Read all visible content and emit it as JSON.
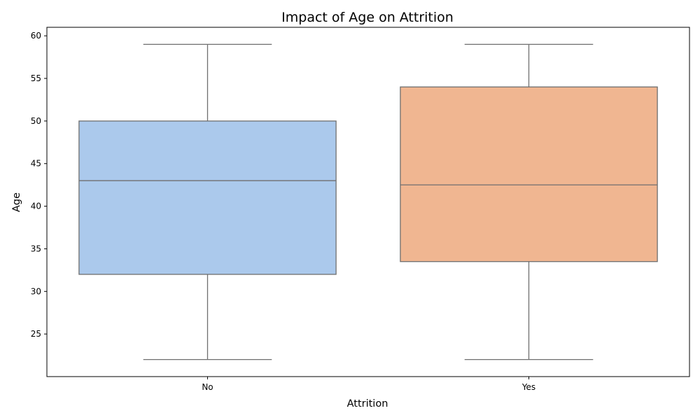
{
  "chart_data": {
    "type": "box",
    "title": "Impact of Age on Attrition",
    "xlabel": "Attrition",
    "ylabel": "Age",
    "ylim": [
      20,
      61
    ],
    "y_ticks": [
      25,
      30,
      35,
      40,
      45,
      50,
      55,
      60
    ],
    "grid": false,
    "categories": [
      "No",
      "Yes"
    ],
    "boxes": [
      {
        "category": "No",
        "min": 22,
        "q1": 32,
        "median": 43,
        "q3": 50,
        "max": 59,
        "color": "#abc9ec"
      },
      {
        "category": "Yes",
        "min": 22,
        "q1": 33.5,
        "median": 42.5,
        "q3": 54,
        "max": 59,
        "color": "#f0b691"
      }
    ],
    "line_color": "#6f6f6f"
  }
}
